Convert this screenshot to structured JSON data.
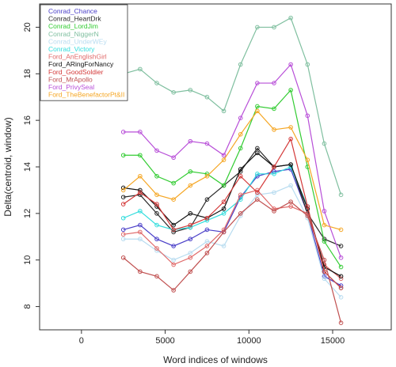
{
  "chart_data": {
    "type": "line",
    "title": "",
    "xlabel": "Word indices of windows",
    "ylabel": "Delta(centroid, window)",
    "xlim": [
      -2500,
      18500
    ],
    "ylim": [
      7.0,
      21.0
    ],
    "xticks": [
      0,
      5000,
      10000,
      15000
    ],
    "yticks": [
      8,
      10,
      12,
      14,
      16,
      18,
      20
    ],
    "grid": false,
    "legend_position": "top-left",
    "x": [
      2500,
      3500,
      4500,
      5500,
      6500,
      7500,
      8500,
      9500,
      10500,
      11500,
      12500,
      13500,
      14500,
      15500
    ],
    "series": [
      {
        "name": "Conrad_Chance",
        "color": "#4a3fc8",
        "values": [
          11.3,
          11.5,
          10.9,
          10.6,
          10.9,
          11.3,
          11.2,
          12.7,
          13.6,
          13.8,
          13.9,
          12.0,
          9.3,
          8.9
        ]
      },
      {
        "name": "Conrad_HeartDrk",
        "color": "#2a2a2a",
        "values": [
          12.7,
          12.8,
          12.0,
          11.2,
          11.4,
          12.6,
          13.2,
          13.8,
          14.8,
          14.0,
          14.1,
          12.0,
          10.9,
          10.6
        ]
      },
      {
        "name": "Conrad_LordJim",
        "color": "#33cc33",
        "values": [
          14.5,
          14.5,
          13.6,
          13.3,
          13.8,
          13.7,
          13.2,
          14.8,
          16.6,
          16.5,
          17.3,
          14.0,
          10.8,
          9.7
        ]
      },
      {
        "name": "Conrad_NiggerN",
        "color": "#7fbf9f",
        "values": [
          18.0,
          18.2,
          17.6,
          17.2,
          17.3,
          17.0,
          16.4,
          18.4,
          20.0,
          20.0,
          20.4,
          18.4,
          15.0,
          12.8
        ]
      },
      {
        "name": "Conrad_UnderWEy",
        "color": "#b8dcf0",
        "values": [
          10.9,
          10.9,
          10.4,
          10.0,
          10.3,
          10.8,
          10.6,
          11.9,
          12.8,
          12.9,
          13.2,
          11.8,
          9.2,
          8.4
        ]
      },
      {
        "name": "Conrad_Victory",
        "color": "#33dddd",
        "values": [
          11.8,
          12.1,
          11.5,
          11.3,
          11.4,
          11.7,
          12.0,
          12.6,
          13.7,
          13.7,
          14.0,
          12.3,
          9.5,
          8.8
        ]
      },
      {
        "name": "Ford_AnEnglishGirl",
        "color": "#e06a6a",
        "values": [
          11.1,
          11.2,
          10.5,
          9.8,
          10.1,
          10.6,
          11.3,
          12.8,
          13.0,
          12.2,
          12.3,
          12.0,
          9.8,
          9.2
        ]
      },
      {
        "name": "Ford_ARingForNancy",
        "color": "#111111",
        "values": [
          13.1,
          13.0,
          12.3,
          11.5,
          12.0,
          11.8,
          12.2,
          13.9,
          14.6,
          14.0,
          14.1,
          12.2,
          9.7,
          9.3
        ]
      },
      {
        "name": "Ford_GoodSoldier",
        "color": "#d43a3a",
        "values": [
          12.4,
          12.9,
          12.4,
          11.3,
          11.5,
          11.8,
          12.5,
          13.6,
          12.9,
          14.0,
          15.2,
          12.3,
          9.5,
          8.8
        ]
      },
      {
        "name": "Ford_MrApollo",
        "color": "#c05050",
        "values": [
          10.1,
          9.5,
          9.3,
          8.7,
          9.5,
          10.3,
          11.2,
          12.0,
          12.6,
          12.1,
          12.5,
          11.9,
          10.0,
          7.3
        ]
      },
      {
        "name": "Ford_PrivySeal",
        "color": "#b84fd8",
        "values": [
          15.5,
          15.5,
          14.7,
          14.4,
          15.1,
          15.0,
          14.5,
          16.1,
          17.6,
          17.6,
          18.4,
          16.2,
          12.1,
          10.1
        ]
      },
      {
        "name": "Ford_TheBenefactorPt&II",
        "color": "#f5a623",
        "values": [
          13.0,
          13.6,
          12.8,
          12.6,
          13.2,
          13.6,
          14.3,
          15.4,
          16.4,
          15.6,
          15.7,
          14.3,
          11.5,
          11.3
        ]
      }
    ]
  }
}
